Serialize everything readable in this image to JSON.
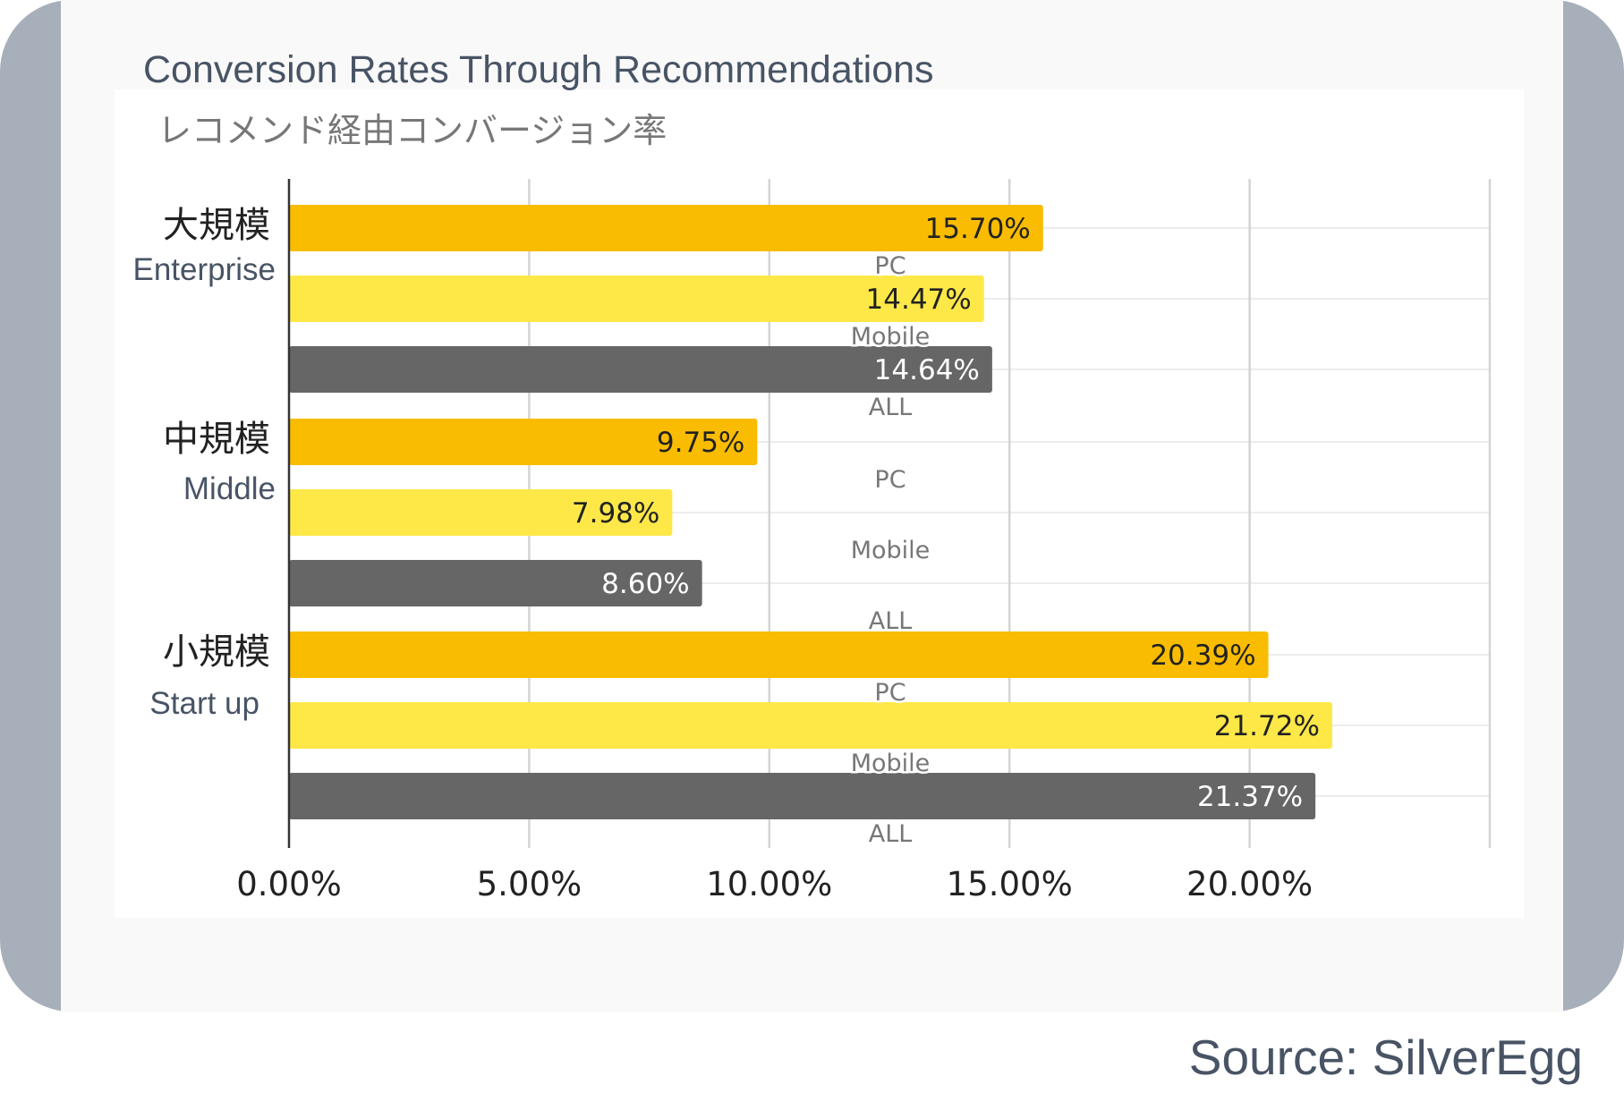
{
  "chart_data": {
    "type": "bar",
    "orientation": "horizontal",
    "title": "Conversion Rates Through Recommendations",
    "subtitle": "レコメンド経由コンバージョン率",
    "groups": [
      {
        "label_ja": "大規模",
        "label_en": "Enterprise"
      },
      {
        "label_ja": "中規模",
        "label_en": "Middle"
      },
      {
        "label_ja": "小規模",
        "label_en": "Start up"
      }
    ],
    "series": [
      {
        "name": "PC",
        "color": "#f9bc00",
        "values": [
          15.7,
          9.75,
          20.39
        ],
        "labels": [
          "15.70%",
          "9.75%",
          "20.39%"
        ]
      },
      {
        "name": "Mobile",
        "color": "#fde848",
        "values": [
          14.47,
          7.98,
          21.72
        ],
        "labels": [
          "14.47%",
          "7.98%",
          "21.72%"
        ]
      },
      {
        "name": "ALL",
        "color": "#666666",
        "values": [
          14.64,
          8.6,
          21.37
        ],
        "labels": [
          "14.64%",
          "8.60%",
          "21.37%"
        ]
      }
    ],
    "xticks": [
      "0.00%",
      "5.00%",
      "10.00%",
      "15.00%",
      "20.00%"
    ],
    "xtick_values": [
      0,
      5,
      10,
      15,
      20
    ],
    "xlim": [
      0,
      25
    ],
    "grid": true
  },
  "source": "Source: SilverEgg"
}
